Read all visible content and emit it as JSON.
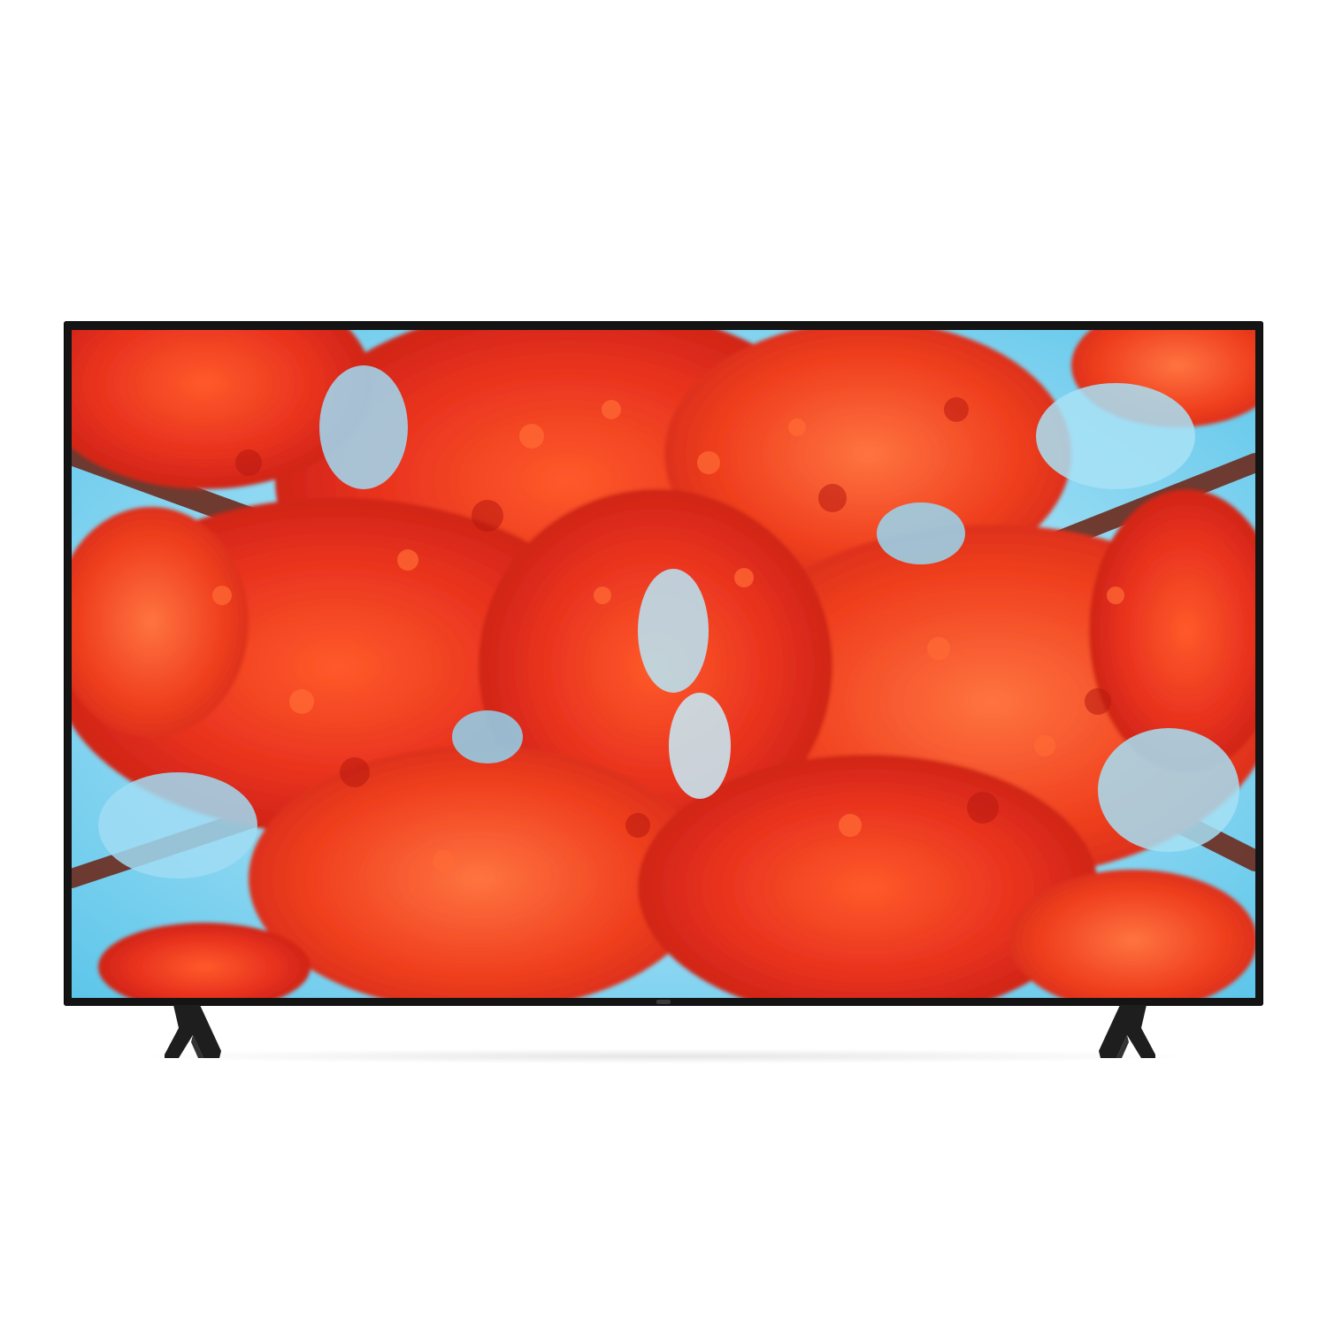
{
  "product": {
    "type-icon": "television-icon",
    "screen_image": "red-autumn-tree-canopy-photo",
    "colors": {
      "bezel": "#141414",
      "stand": "#1e1e1e",
      "background": "#ffffff",
      "sky": "#8fd8f2",
      "foliage": "#e8321e"
    }
  }
}
